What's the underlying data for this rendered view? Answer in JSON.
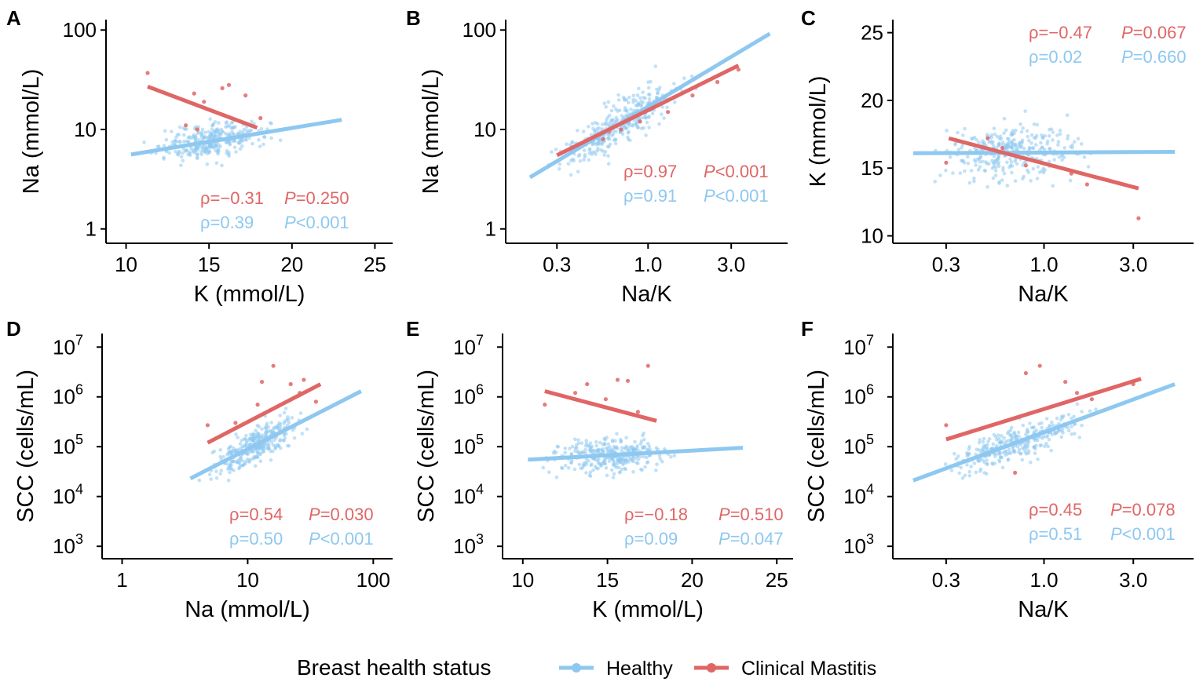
{
  "colors": {
    "healthy": "#8ec8f0",
    "mastitis": "#e06666"
  },
  "legend": {
    "title": "Breast health status",
    "items": [
      {
        "key": "healthy",
        "label": "Healthy"
      },
      {
        "key": "mastitis",
        "label": "Clinical Mastitis"
      }
    ]
  },
  "chart_data": [
    {
      "id": "A",
      "type": "scatter",
      "xlabel": "K (mmol/L)",
      "ylabel": "Na (mmol/L)",
      "xscale": "linear",
      "yscale": "log",
      "xlim": [
        9.5,
        25.5
      ],
      "ylim": [
        0.8,
        110
      ],
      "xticks": [
        10,
        15,
        20,
        25
      ],
      "xtick_labels": [
        "10",
        "15",
        "20",
        "25"
      ],
      "yticks": [
        1,
        10,
        100
      ],
      "ytick_labels": [
        "1",
        "10",
        "100"
      ],
      "fits": {
        "healthy": [
          [
            10.3,
            5.6
          ],
          [
            23,
            12.5
          ]
        ],
        "mastitis": [
          [
            11.3,
            27
          ],
          [
            17.9,
            10.4
          ]
        ]
      },
      "scatter": {
        "healthy": {
          "x": [
            10.3,
            23
          ],
          "y": [
            3.5,
            40
          ]
        }
      },
      "mastitis_points": [
        [
          11.3,
          37
        ],
        [
          14.1,
          23
        ],
        [
          14.7,
          19
        ],
        [
          15.8,
          26
        ],
        [
          16.2,
          28
        ],
        [
          17.2,
          22
        ],
        [
          16.9,
          12
        ],
        [
          14.3,
          10
        ],
        [
          18.1,
          13
        ],
        [
          13.6,
          11
        ]
      ],
      "stats": {
        "mastitis": {
          "rho": "ρ=−0.31",
          "p_label": "P",
          "p_value": "=0.250"
        },
        "healthy": {
          "rho": "ρ=0.39",
          "p_label": "P",
          "p_value": "<0.001"
        }
      }
    },
    {
      "id": "B",
      "type": "scatter",
      "xlabel": "Na/K",
      "ylabel": "Na (mmol/L)",
      "xscale": "log",
      "yscale": "log",
      "xlim": [
        0.18,
        6
      ],
      "ylim": [
        0.8,
        110
      ],
      "xticks": [
        0.3,
        1.0,
        3.0
      ],
      "xtick_labels": [
        "0.3",
        "1.0",
        "3.0"
      ],
      "yticks": [
        1,
        10,
        100
      ],
      "ytick_labels": [
        "1",
        "10",
        "100"
      ],
      "fits": {
        "healthy": [
          [
            0.21,
            3.3
          ],
          [
            5.0,
            92
          ]
        ],
        "mastitis": [
          [
            0.3,
            5.5
          ],
          [
            3.3,
            44
          ]
        ]
      },
      "scatter": {
        "healthy": {
          "x": [
            0.21,
            5.0
          ],
          "y": [
            3.3,
            92
          ]
        }
      },
      "mastitis_points": [
        [
          0.6,
          9.5
        ],
        [
          0.9,
          12
        ],
        [
          1.3,
          15
        ],
        [
          0.55,
          8
        ],
        [
          1.8,
          22
        ],
        [
          2.5,
          30
        ],
        [
          3.3,
          40
        ],
        [
          0.7,
          10
        ]
      ],
      "stats": {
        "mastitis": {
          "rho": "ρ=0.97",
          "p_label": "P",
          "p_value": "<0.001"
        },
        "healthy": {
          "rho": "ρ=0.91",
          "p_label": "P",
          "p_value": "<0.001"
        }
      }
    },
    {
      "id": "C",
      "type": "scatter",
      "xlabel": "Na/K",
      "ylabel": "K (mmol/L)",
      "xscale": "log",
      "yscale": "linear",
      "xlim": [
        0.18,
        6
      ],
      "ylim": [
        9.8,
        25.5
      ],
      "xticks": [
        0.3,
        1.0,
        3.0
      ],
      "xtick_labels": [
        "0.3",
        "1.0",
        "3.0"
      ],
      "yticks": [
        10,
        15,
        20,
        25
      ],
      "ytick_labels": [
        "10",
        "15",
        "20",
        "25"
      ],
      "fits": {
        "healthy": [
          [
            0.2,
            16.1
          ],
          [
            5.0,
            16.2
          ]
        ],
        "mastitis": [
          [
            0.31,
            17.2
          ],
          [
            3.2,
            13.5
          ]
        ]
      },
      "scatter": {
        "healthy": {
          "x": [
            0.2,
            5.0
          ],
          "y": [
            10.5,
            23
          ]
        }
      },
      "mastitis_points": [
        [
          0.3,
          15.4
        ],
        [
          0.6,
          16.5
        ],
        [
          1.4,
          14.6
        ],
        [
          0.8,
          15.2
        ],
        [
          1.7,
          13.8
        ],
        [
          3.2,
          11.3
        ],
        [
          0.5,
          17.2
        ]
      ],
      "stats": {
        "mastitis": {
          "rho": "ρ=−0.47",
          "p_label": "P",
          "p_value": "=0.067"
        },
        "healthy": {
          "rho": "ρ=0.02",
          "p_label": "P",
          "p_value": "=0.660"
        }
      }
    },
    {
      "id": "D",
      "type": "scatter",
      "xlabel": "Na (mmol/L)",
      "ylabel": "SCC (cells/mL)",
      "xscale": "log",
      "yscale": "log",
      "xlim": [
        0.8,
        120
      ],
      "ylim": [
        700,
        14000000
      ],
      "xticks": [
        1,
        10,
        100
      ],
      "xtick_labels": [
        "1",
        "10",
        "100"
      ],
      "yticks": [
        1000,
        10000,
        100000,
        1000000,
        10000000
      ],
      "ytick_labels": [
        [
          "10",
          "3"
        ],
        [
          "10",
          "4"
        ],
        [
          "10",
          "5"
        ],
        [
          "10",
          "6"
        ],
        [
          "10",
          "7"
        ]
      ],
      "fits": {
        "healthy": [
          [
            3.5,
            23000
          ],
          [
            80,
            1300000
          ]
        ],
        "mastitis": [
          [
            4.8,
            120000
          ],
          [
            38,
            1800000
          ]
        ]
      },
      "scatter": {
        "healthy": {
          "x": [
            3.5,
            80
          ],
          "y": [
            8000,
            1200000
          ]
        }
      },
      "mastitis_points": [
        [
          4.8,
          270000
        ],
        [
          13,
          2000000
        ],
        [
          16,
          4200000
        ],
        [
          22,
          1800000
        ],
        [
          26,
          1200000
        ],
        [
          12,
          700000
        ],
        [
          28,
          2200000
        ],
        [
          8,
          300000
        ],
        [
          35,
          800000
        ]
      ],
      "stats": {
        "mastitis": {
          "rho": "ρ=0.54",
          "p_label": "P",
          "p_value": "=0.030"
        },
        "healthy": {
          "rho": "ρ=0.50",
          "p_label": "P",
          "p_value": "<0.001"
        }
      }
    },
    {
      "id": "E",
      "type": "scatter",
      "xlabel": "K (mmol/L)",
      "ylabel": "SCC (cells/mL)",
      "xscale": "linear",
      "yscale": "log",
      "xlim": [
        9.5,
        25.5
      ],
      "ylim": [
        700,
        14000000
      ],
      "xticks": [
        10,
        15,
        20,
        25
      ],
      "xtick_labels": [
        "10",
        "15",
        "20",
        "25"
      ],
      "yticks": [
        1000,
        10000,
        100000,
        1000000,
        10000000
      ],
      "ytick_labels": [
        [
          "10",
          "3"
        ],
        [
          "10",
          "4"
        ],
        [
          "10",
          "5"
        ],
        [
          "10",
          "6"
        ],
        [
          "10",
          "7"
        ]
      ],
      "fits": {
        "healthy": [
          [
            10.3,
            55000
          ],
          [
            23,
            95000
          ]
        ],
        "mastitis": [
          [
            11.3,
            1300000
          ],
          [
            17.9,
            330000
          ]
        ]
      },
      "scatter": {
        "healthy": {
          "x": [
            10.3,
            23
          ],
          "y": [
            8000,
            1000000
          ]
        }
      },
      "mastitis_points": [
        [
          11.3,
          700000
        ],
        [
          13.8,
          1800000
        ],
        [
          15.6,
          2200000
        ],
        [
          16.2,
          2100000
        ],
        [
          17.4,
          4200000
        ],
        [
          14.9,
          900000
        ],
        [
          16.8,
          500000
        ],
        [
          13.1,
          1200000
        ]
      ],
      "stats": {
        "mastitis": {
          "rho": "ρ=−0.18",
          "p_label": "P",
          "p_value": "=0.510"
        },
        "healthy": {
          "rho": "ρ=0.09",
          "p_label": "P",
          "p_value": "=0.047"
        }
      }
    },
    {
      "id": "F",
      "type": "scatter",
      "xlabel": "Na/K",
      "ylabel": "SCC (cells/mL)",
      "xscale": "log",
      "yscale": "log",
      "xlim": [
        0.18,
        6
      ],
      "ylim": [
        700,
        14000000
      ],
      "xticks": [
        0.3,
        1.0,
        3.0
      ],
      "xtick_labels": [
        "0.3",
        "1.0",
        "3.0"
      ],
      "yticks": [
        1000,
        10000,
        100000,
        1000000,
        10000000
      ],
      "ytick_labels": [
        [
          "10",
          "3"
        ],
        [
          "10",
          "4"
        ],
        [
          "10",
          "5"
        ],
        [
          "10",
          "6"
        ],
        [
          "10",
          "7"
        ]
      ],
      "fits": {
        "healthy": [
          [
            0.2,
            21000
          ],
          [
            5.0,
            1800000
          ]
        ],
        "mastitis": [
          [
            0.3,
            140000
          ],
          [
            3.3,
            2300000
          ]
        ]
      },
      "scatter": {
        "healthy": {
          "x": [
            0.2,
            5.0
          ],
          "y": [
            8000,
            1200000
          ]
        }
      },
      "mastitis_points": [
        [
          0.3,
          270000
        ],
        [
          0.95,
          4200000
        ],
        [
          1.3,
          2000000
        ],
        [
          1.5,
          1200000
        ],
        [
          0.8,
          3000000
        ],
        [
          0.7,
          30000
        ],
        [
          1.8,
          900000
        ],
        [
          3.0,
          1800000
        ]
      ],
      "stats": {
        "mastitis": {
          "rho": "ρ=0.45",
          "p_label": "P",
          "p_value": "=0.078"
        },
        "healthy": {
          "rho": "ρ=0.51",
          "p_label": "P",
          "p_value": "<0.001"
        }
      }
    }
  ]
}
